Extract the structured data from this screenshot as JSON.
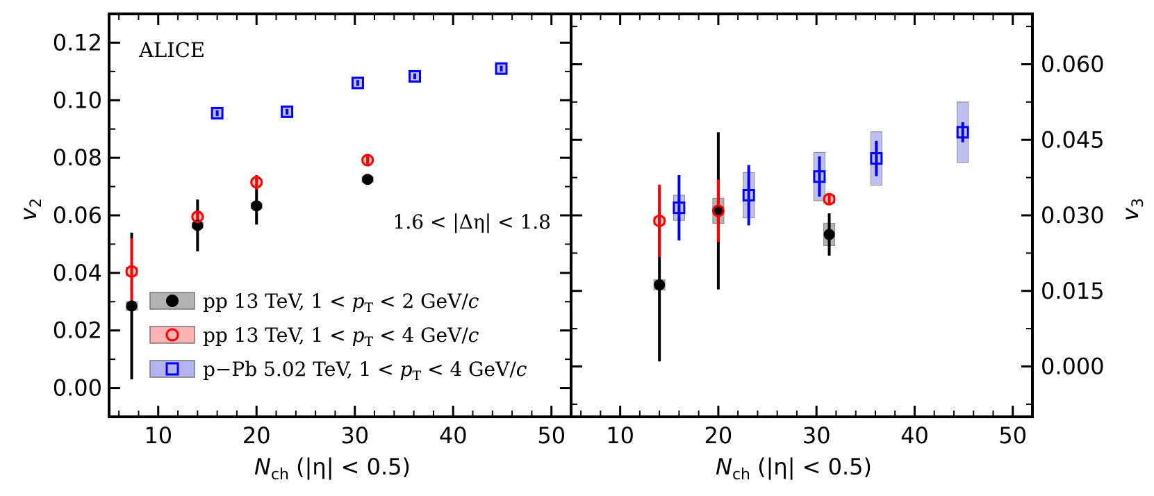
{
  "chart_data": [
    {
      "type": "scatter",
      "panel": "left",
      "ylabel": "v2",
      "ylabel_main": "v",
      "ylabel_sub": "2",
      "xlabel": "N_ch (|η| < 0.5)",
      "xlabel_main": "N",
      "xlabel_sub": "ch",
      "xlabel_rest": " (|η| < 0.5)",
      "xlim": [
        5,
        52
      ],
      "ylim": [
        -0.01,
        0.13
      ],
      "xticks": [
        10,
        20,
        30,
        40,
        50
      ],
      "xtick_labels": [
        "10",
        "20",
        "30",
        "40",
        "50"
      ],
      "yticks": [
        0.0,
        0.02,
        0.04,
        0.06,
        0.08,
        0.1,
        0.12
      ],
      "ytick_labels": [
        "0.00",
        "0.02",
        "0.04",
        "0.06",
        "0.08",
        "0.10",
        "0.12"
      ],
      "annotations": [
        "ALICE",
        "1.6 < |Δη| < 1.8"
      ],
      "series": [
        {
          "name": "pp 13 TeV, 1 < pT < 2 GeV/c",
          "color": "#000000",
          "marker": "filled-circle",
          "x": [
            7.3,
            14.0,
            20.0,
            31.3
          ],
          "y": [
            0.0285,
            0.0565,
            0.0633,
            0.0725
          ],
          "err": [
            0.0255,
            0.009,
            0.0065,
            0.001
          ],
          "sys": [
            0.0015,
            0.001,
            0.001,
            0.001
          ]
        },
        {
          "name": "pp 13 TeV, 1 < pT < 4 GeV/c",
          "color": "#ff0000",
          "marker": "open-circle",
          "x": [
            7.3,
            14.0,
            20.0,
            31.3
          ],
          "y": [
            0.0405,
            0.0595,
            0.0715,
            0.0792
          ],
          "err": [
            0.0115,
            0.0015,
            0.0025,
            0.0015
          ],
          "sys": [
            0.0015,
            0.001,
            0.001,
            0.001
          ]
        },
        {
          "name": "p−Pb 5.02 TeV, 1 < pT < 4 GeV/c",
          "color": "#0000ff",
          "marker": "open-square",
          "x": [
            16.0,
            23.1,
            30.3,
            36.1,
            44.9
          ],
          "y": [
            0.0955,
            0.096,
            0.106,
            0.1083,
            0.111
          ],
          "err": [
            0.001,
            0.001,
            0.001,
            0.001,
            0.001
          ],
          "sys": [
            0.0015,
            0.0015,
            0.0015,
            0.0015,
            0.0015
          ]
        }
      ]
    },
    {
      "type": "scatter",
      "panel": "right",
      "ylabel": "v3",
      "ylabel_main": "v",
      "ylabel_sub": "3",
      "xlabel": "N_ch (|η| < 0.5)",
      "xlabel_main": "N",
      "xlabel_sub": "ch",
      "xlabel_rest": " (|η| < 0.5)",
      "xlim": [
        5,
        52
      ],
      "ylim": [
        -0.01,
        0.07
      ],
      "xticks": [
        10,
        20,
        30,
        40,
        50
      ],
      "xtick_labels": [
        "10",
        "20",
        "30",
        "40",
        "50"
      ],
      "yticks": [
        0.0,
        0.015,
        0.03,
        0.045,
        0.06
      ],
      "ytick_labels": [
        "0.000",
        "0.015",
        "0.030",
        "0.045",
        "0.060"
      ],
      "series": [
        {
          "name": "pp 13 TeV, 1 < pT < 2 GeV/c",
          "color": "#000000",
          "marker": "filled-circle",
          "x": [
            14.0,
            20.0,
            31.3
          ],
          "y": [
            0.0162,
            0.0309,
            0.0262
          ],
          "err": [
            0.0152,
            0.0156,
            0.0042
          ],
          "sys": [
            0.001,
            0.0025,
            0.0022
          ]
        },
        {
          "name": "pp 13 TeV, 1 < pT < 4 GeV/c",
          "color": "#ff0000",
          "marker": "open-circle",
          "x": [
            14.0,
            20.0,
            31.3
          ],
          "y": [
            0.0289,
            0.0309,
            0.0332
          ],
          "err": [
            0.0072,
            0.0062,
            0.0012
          ],
          "sys": [
            0.0008,
            0.0008,
            0.0008
          ]
        },
        {
          "name": "p−Pb 5.02 TeV, 1 < pT < 4 GeV/c",
          "color": "#0000ff",
          "marker": "open-square",
          "x": [
            16.0,
            23.1,
            30.3,
            36.1,
            44.9
          ],
          "y": [
            0.0315,
            0.034,
            0.0377,
            0.0413,
            0.0465
          ],
          "err": [
            0.0065,
            0.006,
            0.004,
            0.0035,
            0.002
          ],
          "sys": [
            0.0025,
            0.0045,
            0.0048,
            0.0053,
            0.006
          ]
        }
      ]
    }
  ],
  "legend": {
    "entries": [
      {
        "prefix": "pp 13 TeV, 1 <",
        "var": "p",
        "sub": "T",
        "rest": "< 2 GeV/",
        "unit": "c",
        "color": "#000000",
        "fill": "#b3b3b3",
        "marker": "filled-circle"
      },
      {
        "prefix": "pp 13 TeV, 1 <",
        "var": "p",
        "sub": "T",
        "rest": "< 4 GeV/",
        "unit": "c",
        "color": "#ff0000",
        "fill": "#ffb3b3",
        "marker": "open-circle"
      },
      {
        "prefix": "p−Pb 5.02 TeV, 1 <",
        "var": "p",
        "sub": "T",
        "rest": "< 4 GeV/",
        "unit": "c",
        "color": "#0000ff",
        "fill": "#b3b3f0",
        "marker": "open-square"
      }
    ]
  },
  "annotation_alice": "ALICE",
  "annotation_deta": "1.6 < |Δη| < 1.8"
}
